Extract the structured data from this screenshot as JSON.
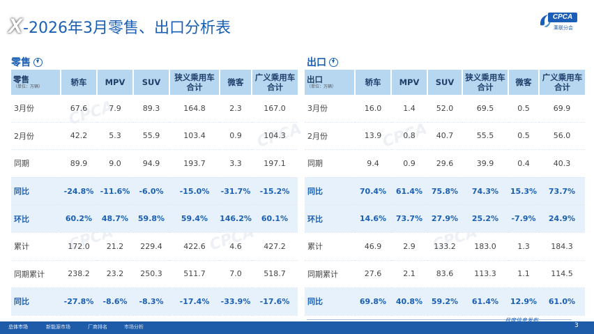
{
  "header": {
    "logo_text": "X",
    "title": "-2026年3月零售、出口分析表",
    "cpca_logo": "CPCA",
    "cpca_sub": "乘联分会"
  },
  "retail": {
    "section_label": "零售",
    "corner_label": "零售",
    "corner_unit": "（单位：万辆）",
    "columns": [
      "轿车",
      "MPV",
      "SUV",
      "狭义乘用车\n合计",
      "微客",
      "广义乘用车\n合计"
    ],
    "rows": [
      {
        "label": "3月份",
        "values": [
          "67.6",
          "7.9",
          "89.3",
          "164.8",
          "2.3",
          "167.0"
        ],
        "highlight": false
      },
      {
        "label": "2月份",
        "values": [
          "42.2",
          "5.3",
          "55.9",
          "103.4",
          "0.9",
          "104.3"
        ],
        "highlight": false
      },
      {
        "label": "同期",
        "values": [
          "89.9",
          "9.0",
          "94.9",
          "193.7",
          "3.3",
          "197.1"
        ],
        "highlight": false
      },
      {
        "label": "同比",
        "values": [
          "-24.8%",
          "-11.6%",
          "-6.0%",
          "-15.0%",
          "-31.7%",
          "-15.2%"
        ],
        "highlight": true
      },
      {
        "label": "环比",
        "values": [
          "60.2%",
          "48.7%",
          "59.8%",
          "59.4%",
          "146.2%",
          "60.1%"
        ],
        "highlight": true
      },
      {
        "label": "累计",
        "values": [
          "172.0",
          "21.2",
          "229.4",
          "422.6",
          "4.6",
          "427.2"
        ],
        "highlight": false
      },
      {
        "label": "同期累计",
        "values": [
          "238.2",
          "23.2",
          "250.3",
          "511.7",
          "7.0",
          "518.7"
        ],
        "highlight": false
      },
      {
        "label": "同比",
        "values": [
          "-27.8%",
          "-8.6%",
          "-8.3%",
          "-17.4%",
          "-33.9%",
          "-17.6%"
        ],
        "highlight": true
      }
    ]
  },
  "export": {
    "section_label": "出口",
    "corner_label": "出口",
    "corner_unit": "（单位：万辆）",
    "columns": [
      "轿车",
      "MPV",
      "SUV",
      "狭义乘用车\n合计",
      "微客",
      "广义乘用车\n合计"
    ],
    "rows": [
      {
        "label": "3月份",
        "values": [
          "16.0",
          "1.4",
          "52.0",
          "69.5",
          "0.5",
          "69.9"
        ],
        "highlight": false
      },
      {
        "label": "2月份",
        "values": [
          "13.9",
          "0.8",
          "40.7",
          "55.5",
          "0.5",
          "56.0"
        ],
        "highlight": false
      },
      {
        "label": "同期",
        "values": [
          "9.4",
          "0.9",
          "29.6",
          "39.9",
          "0.4",
          "40.3"
        ],
        "highlight": false
      },
      {
        "label": "同比",
        "values": [
          "70.4%",
          "61.4%",
          "75.8%",
          "74.3%",
          "15.3%",
          "73.7%"
        ],
        "highlight": true
      },
      {
        "label": "环比",
        "values": [
          "14.6%",
          "73.7%",
          "27.9%",
          "25.2%",
          "-7.9%",
          "24.9%"
        ],
        "highlight": true
      },
      {
        "label": "累计",
        "values": [
          "46.9",
          "2.9",
          "133.2",
          "183.0",
          "1.3",
          "184.3"
        ],
        "highlight": false
      },
      {
        "label": "同期累计",
        "values": [
          "27.6",
          "2.1",
          "83.6",
          "113.3",
          "1.1",
          "114.5"
        ],
        "highlight": false
      },
      {
        "label": "同比",
        "values": [
          "69.8%",
          "40.8%",
          "59.2%",
          "61.4%",
          "12.9%",
          "61.0%"
        ],
        "highlight": true
      }
    ]
  },
  "footer": {
    "tabs": [
      "总体市场",
      "新能源市场",
      "厂商排名",
      "市场分析"
    ],
    "tagline": "月度信息发布",
    "page_number": "3"
  },
  "colors": {
    "brand_blue": "#1a5fb4",
    "header_fill": "#b7d7f1",
    "highlight_row": "#e6f1fb",
    "footer_bar": "#1e5ba8"
  }
}
